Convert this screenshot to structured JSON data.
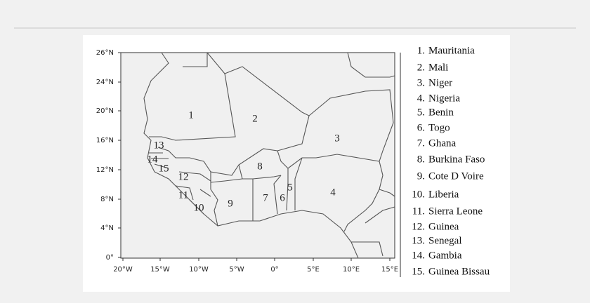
{
  "map": {
    "lat_ticks": [
      "26°N",
      "24°N",
      "20°N",
      "16°N",
      "12°N",
      "8°N",
      "4°N",
      "0°"
    ],
    "lon_ticks": [
      "20°W",
      "15°W",
      "10°W",
      "5°W",
      "0°",
      "5°E",
      "10°E",
      "15°E"
    ],
    "regions": [
      "1",
      "2",
      "3",
      "4",
      "5",
      "6",
      "7",
      "8",
      "9",
      "10",
      "11",
      "12",
      "13",
      "14",
      "15"
    ]
  },
  "legend": [
    {
      "number": "1.",
      "name": "Mauritania"
    },
    {
      "number": "2.",
      "name": "Mali"
    },
    {
      "number": "3.",
      "name": "Niger"
    },
    {
      "number": "4.",
      "name": "Nigeria"
    },
    {
      "number": "5.",
      "name": "Benin"
    },
    {
      "number": "6.",
      "name": "Togo"
    },
    {
      "number": "7.",
      "name": "Ghana"
    },
    {
      "number": "8.",
      "name": "Burkina Faso"
    },
    {
      "number": "9.",
      "name": "Cote D Voire"
    },
    {
      "number": "10.",
      "name": "Liberia"
    },
    {
      "number": "11.",
      "name": "Sierra Leone"
    },
    {
      "number": "12.",
      "name": "Guinea"
    },
    {
      "number": "13.",
      "name": "Senegal"
    },
    {
      "number": "14.",
      "name": "Gambia"
    },
    {
      "number": "15.",
      "name": "Guinea Bissau"
    }
  ]
}
